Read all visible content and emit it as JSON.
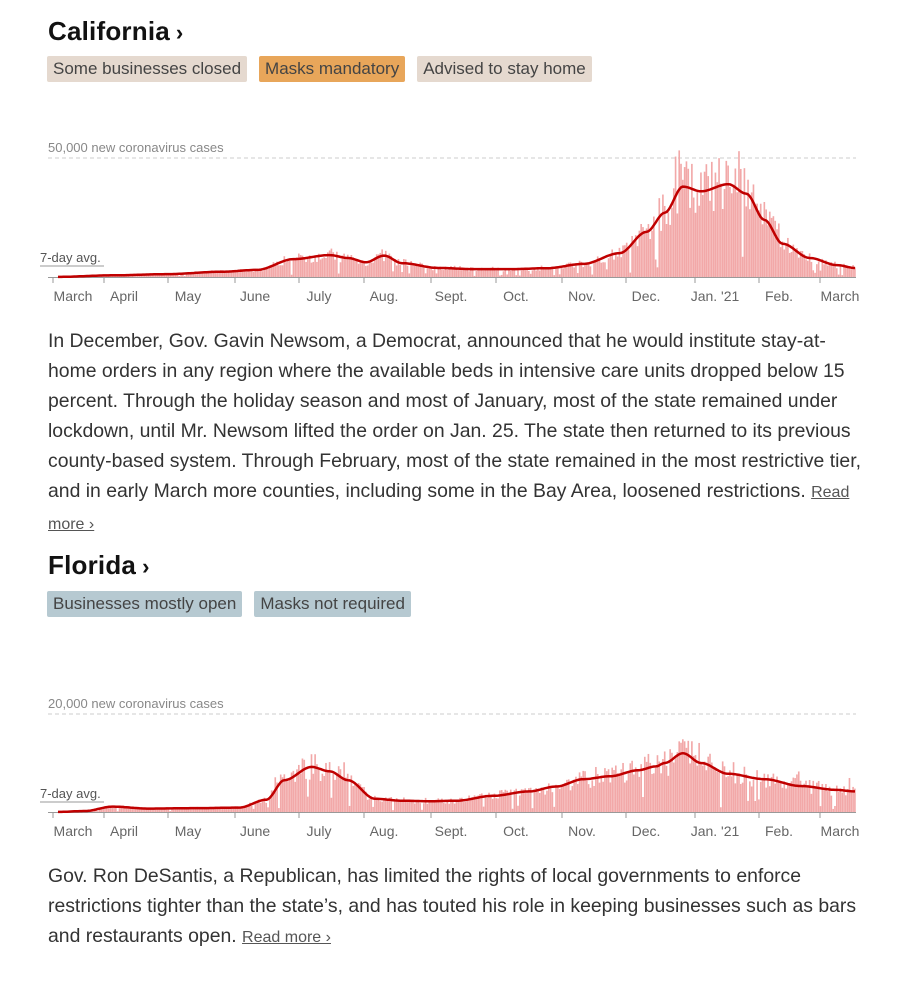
{
  "sections": [
    {
      "state": "California",
      "chevron": "›",
      "tags": [
        {
          "label": "Some businesses closed",
          "color": "#e5d9cf"
        },
        {
          "label": "Masks mandatory",
          "color": "#e8a65a"
        },
        {
          "label": "Advised to stay home",
          "color": "#e5d9cf"
        }
      ],
      "description": "In December, Gov. Gavin Newsom, a Democrat, announced that he would institute stay-at-home orders in any region where the available beds in intensive care units dropped below 15 percent. Through the holiday season and most of January, most of the state remained under lockdown, until Mr. Newsom lifted the order on Jan. 25. The state then returned to its previous county-based system. Through February, most of the state remained in the most restrictive tier, and in early March more counties, including some in the Bay Area, loosened restrictions.",
      "read_more": "Read more ›"
    },
    {
      "state": "Florida",
      "chevron": "›",
      "tags": [
        {
          "label": "Businesses mostly open",
          "color": "#b6c9d1"
        },
        {
          "label": "Masks not required",
          "color": "#b6c9d1"
        }
      ],
      "description": "Gov. Ron DeSantis, a Republican, has limited the rights of local governments to enforce restrictions tighter than the state’s, and has touted his role in keeping businesses such as bars and restaurants open.",
      "read_more": "Read more ›"
    }
  ],
  "chart_data": [
    {
      "type": "bar",
      "state": "California",
      "max_label": "50,000 new coronavirus cases",
      "avg_label": "7-day avg.",
      "y_reference": 50000,
      "ylim": [
        0,
        54000
      ],
      "x_ticks": [
        "March",
        "April",
        "May",
        "June",
        "July",
        "Aug.",
        "Sept.",
        "Oct.",
        "Nov.",
        "Dec.",
        "Jan. '21",
        "Feb.",
        "March"
      ],
      "bar_color": "#f2a8a8",
      "avg_color": "#c00000",
      "avg_anchors": [
        [
          0,
          50
        ],
        [
          30,
          700
        ],
        [
          60,
          1200
        ],
        [
          90,
          2200
        ],
        [
          110,
          3000
        ],
        [
          130,
          7500
        ],
        [
          150,
          9200
        ],
        [
          160,
          8000
        ],
        [
          170,
          6200
        ],
        [
          180,
          9000
        ],
        [
          190,
          5800
        ],
        [
          210,
          3800
        ],
        [
          230,
          3300
        ],
        [
          250,
          3300
        ],
        [
          270,
          3700
        ],
        [
          290,
          5500
        ],
        [
          310,
          10000
        ],
        [
          325,
          19000
        ],
        [
          335,
          27000
        ],
        [
          345,
          38000
        ],
        [
          355,
          36000
        ],
        [
          370,
          39000
        ],
        [
          380,
          35000
        ],
        [
          390,
          24000
        ],
        [
          400,
          14000
        ],
        [
          415,
          8000
        ],
        [
          430,
          5000
        ],
        [
          440,
          3800
        ]
      ]
    },
    {
      "type": "bar",
      "state": "Florida",
      "max_label": "20,000 new coronavirus cases",
      "avg_label": "7-day avg.",
      "y_reference": 20000,
      "ylim": [
        0,
        21300
      ],
      "x_ticks": [
        "March",
        "April",
        "May",
        "June",
        "July",
        "Aug.",
        "Sept.",
        "Oct.",
        "Nov.",
        "Dec.",
        "Jan. '21",
        "Feb.",
        "March"
      ],
      "bar_color": "#f2a8a8",
      "avg_color": "#c00000",
      "avg_anchors": [
        [
          0,
          20
        ],
        [
          15,
          200
        ],
        [
          30,
          1100
        ],
        [
          50,
          700
        ],
        [
          80,
          800
        ],
        [
          100,
          900
        ],
        [
          115,
          2500
        ],
        [
          125,
          6500
        ],
        [
          140,
          9200
        ],
        [
          150,
          8300
        ],
        [
          160,
          6500
        ],
        [
          175,
          2700
        ],
        [
          190,
          2300
        ],
        [
          205,
          2200
        ],
        [
          220,
          2300
        ],
        [
          240,
          3300
        ],
        [
          260,
          4200
        ],
        [
          275,
          5200
        ],
        [
          290,
          6700
        ],
        [
          305,
          7300
        ],
        [
          320,
          8500
        ],
        [
          330,
          9300
        ],
        [
          335,
          10000
        ],
        [
          345,
          12000
        ],
        [
          355,
          10000
        ],
        [
          370,
          7800
        ],
        [
          390,
          6700
        ],
        [
          410,
          5300
        ],
        [
          430,
          4500
        ],
        [
          440,
          4200
        ]
      ]
    }
  ]
}
